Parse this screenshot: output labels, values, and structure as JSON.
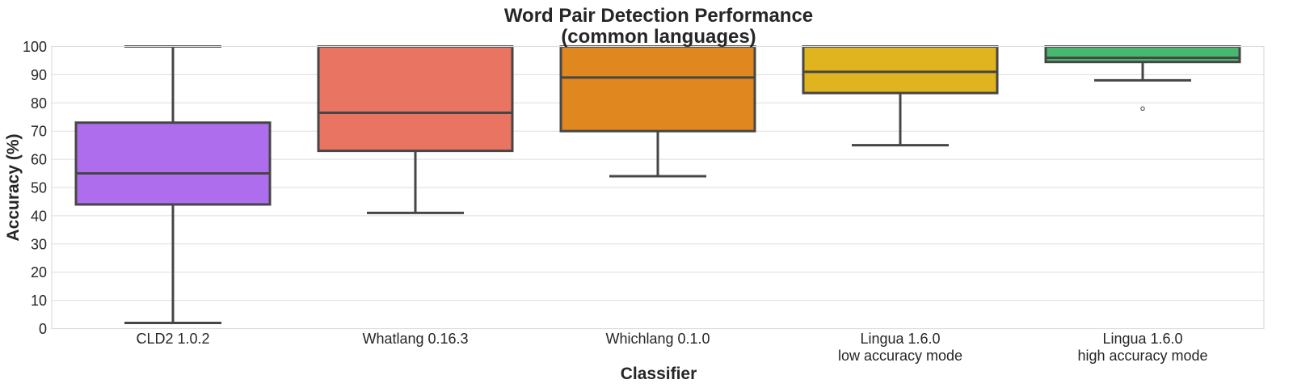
{
  "chart_data": {
    "type": "box",
    "title": "Word Pair Detection Performance",
    "subtitle": "(common languages)",
    "xlabel": "Classifier",
    "ylabel": "Accuracy (%)",
    "ylim": [
      0,
      100
    ],
    "yticks": [
      0,
      10,
      20,
      30,
      40,
      50,
      60,
      70,
      80,
      90,
      100
    ],
    "grid": true,
    "series": [
      {
        "label": [
          "CLD2 1.0.2"
        ],
        "color": "#ae6ded",
        "whisker_low": 2,
        "q1": 44,
        "median": 55,
        "q3": 73,
        "whisker_high": 100,
        "outliers": []
      },
      {
        "label": [
          "Whatlang 0.16.3"
        ],
        "color": "#e87461",
        "whisker_low": 41,
        "q1": 63,
        "median": 76.5,
        "q3": 100,
        "whisker_high": 100,
        "outliers": []
      },
      {
        "label": [
          "Whichlang 0.1.0"
        ],
        "color": "#e0871f",
        "whisker_low": 54,
        "q1": 70,
        "median": 89,
        "q3": 100,
        "whisker_high": 100,
        "outliers": []
      },
      {
        "label": [
          "Lingua 1.6.0",
          "low accuracy mode"
        ],
        "color": "#e0b41f",
        "whisker_low": 65,
        "q1": 83.5,
        "median": 91,
        "q3": 100,
        "whisker_high": 100,
        "outliers": []
      },
      {
        "label": [
          "Lingua 1.6.0",
          "high accuracy mode"
        ],
        "color": "#47b96e",
        "whisker_low": 88,
        "q1": 94.5,
        "median": 96,
        "q3": 100,
        "whisker_high": 100,
        "outliers": [
          78
        ]
      }
    ]
  }
}
